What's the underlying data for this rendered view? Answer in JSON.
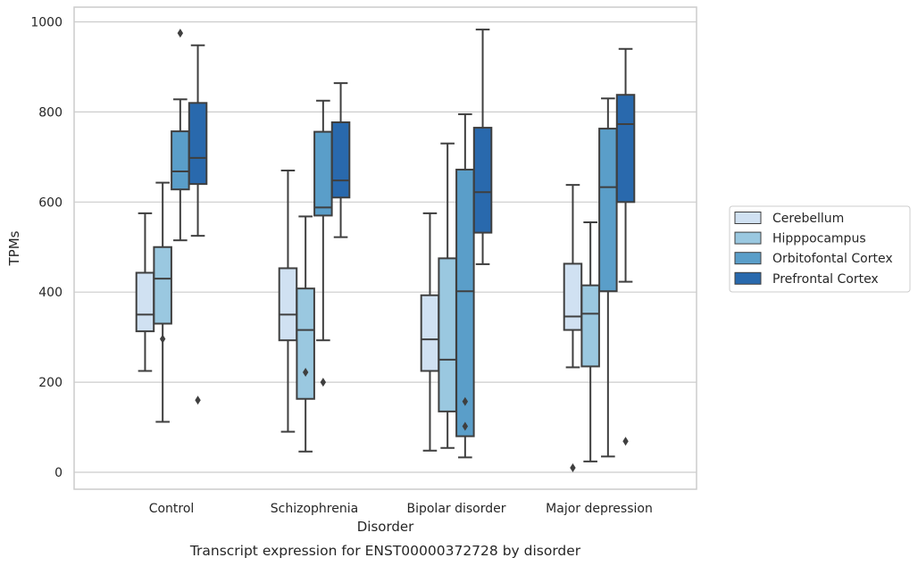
{
  "chart_data": {
    "type": "box",
    "xlabel": "Disorder",
    "ylabel": "TPMs",
    "caption": "Transcript expression for ENST00000372728 by disorder",
    "ylim": [
      -35,
      1030
    ],
    "yticks": [
      0,
      200,
      400,
      600,
      800,
      1000
    ],
    "grid": "horizontal",
    "legend_position": "right",
    "categories": [
      "Control",
      "Schizophrenia",
      "Bipolar disorder",
      "Major depression"
    ],
    "series": [
      {
        "name": "Cerebellum",
        "color": "#d0e1f2",
        "boxes": [
          {
            "min": 225,
            "q1": 313,
            "median": 350,
            "q3": 443,
            "max": 575,
            "outliers": []
          },
          {
            "min": 90,
            "q1": 293,
            "median": 350,
            "q3": 453,
            "max": 670,
            "outliers": []
          },
          {
            "min": 48,
            "q1": 225,
            "median": 295,
            "q3": 393,
            "max": 575,
            "outliers": []
          },
          {
            "min": 233,
            "q1": 316,
            "median": 346,
            "q3": 463,
            "max": 638,
            "outliers": [
              10
            ]
          }
        ]
      },
      {
        "name": "Hipppocampus",
        "color": "#9ac8e0",
        "boxes": [
          {
            "min": 112,
            "q1": 330,
            "median": 430,
            "q3": 500,
            "max": 643,
            "outliers": [
              296
            ]
          },
          {
            "min": 46,
            "q1": 163,
            "median": 316,
            "q3": 408,
            "max": 568,
            "outliers": [
              222
            ]
          },
          {
            "min": 54,
            "q1": 135,
            "median": 250,
            "q3": 475,
            "max": 730,
            "outliers": []
          },
          {
            "min": 24,
            "q1": 235,
            "median": 352,
            "q3": 415,
            "max": 555,
            "outliers": []
          }
        ]
      },
      {
        "name": "Orbitofontal Cortex",
        "color": "#5a9ec9",
        "boxes": [
          {
            "min": 515,
            "q1": 628,
            "median": 668,
            "q3": 757,
            "max": 828,
            "outliers": [
              975
            ]
          },
          {
            "min": 293,
            "q1": 570,
            "median": 588,
            "q3": 756,
            "max": 825,
            "outliers": [
              200
            ]
          },
          {
            "min": 33,
            "q1": 80,
            "median": 402,
            "q3": 672,
            "max": 795,
            "outliers": [
              157,
              102
            ]
          },
          {
            "min": 35,
            "q1": 402,
            "median": 633,
            "q3": 763,
            "max": 830,
            "outliers": []
          }
        ]
      },
      {
        "name": "Prefrontal Cortex",
        "color": "#2969ad",
        "boxes": [
          {
            "min": 525,
            "q1": 640,
            "median": 698,
            "q3": 820,
            "max": 948,
            "outliers": [
              160
            ]
          },
          {
            "min": 522,
            "q1": 610,
            "median": 648,
            "q3": 777,
            "max": 864,
            "outliers": []
          },
          {
            "min": 462,
            "q1": 532,
            "median": 622,
            "q3": 765,
            "max": 983,
            "outliers": []
          },
          {
            "min": 423,
            "q1": 600,
            "median": 773,
            "q3": 838,
            "max": 940,
            "outliers": [
              69
            ]
          }
        ]
      }
    ]
  }
}
